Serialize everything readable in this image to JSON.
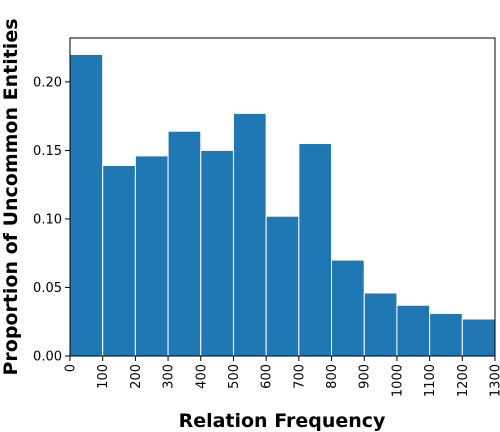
{
  "chart_data": {
    "type": "bar",
    "xlabel": "Relation Frequency",
    "ylabel": "Proportion of Uncommon Entities",
    "bins": [
      {
        "start": 0,
        "end": 100,
        "value": 0.22
      },
      {
        "start": 100,
        "end": 200,
        "value": 0.139
      },
      {
        "start": 200,
        "end": 300,
        "value": 0.146
      },
      {
        "start": 300,
        "end": 400,
        "value": 0.164
      },
      {
        "start": 400,
        "end": 500,
        "value": 0.15
      },
      {
        "start": 500,
        "end": 600,
        "value": 0.177
      },
      {
        "start": 600,
        "end": 700,
        "value": 0.102
      },
      {
        "start": 700,
        "end": 800,
        "value": 0.155
      },
      {
        "start": 800,
        "end": 900,
        "value": 0.07
      },
      {
        "start": 900,
        "end": 1000,
        "value": 0.046
      },
      {
        "start": 1000,
        "end": 1100,
        "value": 0.037
      },
      {
        "start": 1100,
        "end": 1200,
        "value": 0.031
      },
      {
        "start": 1200,
        "end": 1300,
        "value": 0.027
      }
    ],
    "x_ticks": [
      "0",
      "100",
      "200",
      "300",
      "400",
      "500",
      "600",
      "700",
      "800",
      "900",
      "1000",
      "1100",
      "1200",
      "1300"
    ],
    "y_ticks": [
      "0.00",
      "0.05",
      "0.10",
      "0.15",
      "0.20"
    ],
    "xlim": [
      0,
      1300
    ],
    "ylim": [
      0,
      0.232
    ],
    "bar_color": "#1f77b4",
    "grid": false,
    "legend": false
  }
}
